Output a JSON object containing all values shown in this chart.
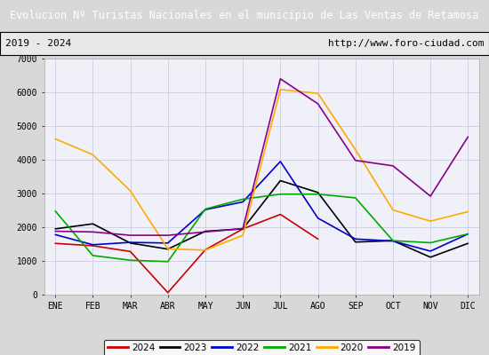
{
  "title": "Evolucion Nº Turistas Nacionales en el municipio de Las Ventas de Retamosa",
  "subtitle_left": "2019 - 2024",
  "subtitle_right": "http://www.foro-ciudad.com",
  "title_bg_color": "#4169b0",
  "title_text_color": "#ffffff",
  "subtitle_bg_color": "#e8e8e8",
  "subtitle_border_color": "#000000",
  "months": [
    "ENE",
    "FEB",
    "MAR",
    "ABR",
    "MAY",
    "JUN",
    "JUL",
    "AGO",
    "SEP",
    "OCT",
    "NOV",
    "DIC"
  ],
  "ylim": [
    0,
    7000
  ],
  "yticks": [
    0,
    1000,
    2000,
    3000,
    4000,
    5000,
    6000,
    7000
  ],
  "series": {
    "2024": {
      "color": "#cc0000",
      "data": [
        1520,
        1450,
        1280,
        60,
        1330,
        1950,
        2380,
        1650,
        null,
        null,
        null,
        null
      ]
    },
    "2023": {
      "color": "#000000",
      "data": [
        1950,
        2100,
        1530,
        1350,
        1880,
        1950,
        3380,
        3030,
        1560,
        1600,
        1110,
        1520
      ]
    },
    "2022": {
      "color": "#0000cc",
      "data": [
        1780,
        1480,
        1550,
        1530,
        2520,
        2750,
        3950,
        2270,
        1650,
        1590,
        1290,
        1800
      ]
    },
    "2021": {
      "color": "#00aa00",
      "data": [
        2480,
        1160,
        1020,
        980,
        2540,
        2830,
        2980,
        2980,
        2870,
        1600,
        1540,
        1800
      ]
    },
    "2020": {
      "color": "#ffaa00",
      "data": [
        4620,
        4150,
        3080,
        1360,
        1320,
        1760,
        6080,
        5970,
        4300,
        2510,
        2180,
        2460
      ]
    },
    "2019": {
      "color": "#880088",
      "data": [
        1880,
        1860,
        1760,
        1760,
        1860,
        1960,
        6400,
        5660,
        3980,
        3820,
        2920,
        4680
      ]
    }
  },
  "legend_order": [
    "2024",
    "2023",
    "2022",
    "2021",
    "2020",
    "2019"
  ],
  "fig_bg_color": "#d8d8d8",
  "plot_bg_color": "#f0f0f8",
  "grid_color": "#ccccdd"
}
